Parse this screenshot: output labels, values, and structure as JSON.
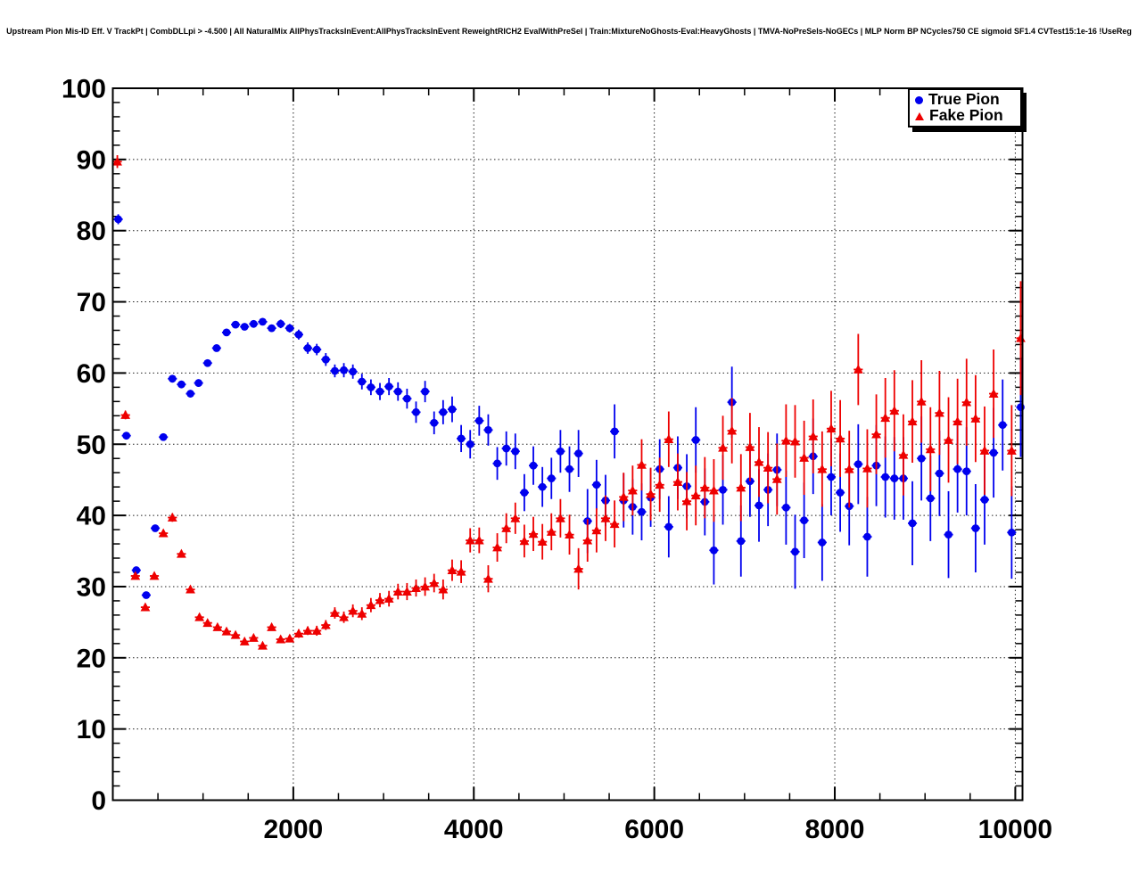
{
  "title": "Upstream Pion Mis-ID Eff. V TrackPt | CombDLLpi > -4.500 | All NaturalMix AllPhysTracksInEvent:AllPhysTracksInEvent ReweightRICH2 EvalWithPreSel | Train:MixtureNoGhosts-Eval:HeavyGhosts | TMVA-NoPreSels-NoGECs | MLP Norm BP NCycles750 CE sigmoid SF1.4 CVTest15:1e-16 !UseReg",
  "legend": {
    "items": [
      {
        "label": "True Pion",
        "marker": "circle",
        "color": "#0000ee"
      },
      {
        "label": "Fake Pion",
        "marker": "triangle",
        "color": "#ee0000"
      }
    ]
  },
  "colors": {
    "true_pion": "#0000ee",
    "fake_pion": "#ee0000",
    "frame": "#000000",
    "grid": "#222222",
    "background": "#ffffff"
  },
  "chart_data": {
    "type": "scatter",
    "title": "Upstream Pion Mis-ID Eff. V TrackPt",
    "xlabel": "",
    "ylabel": "",
    "xlim": [
      0,
      10080
    ],
    "ylim": [
      0,
      100
    ],
    "x_ticks": [
      2000,
      4000,
      6000,
      8000,
      10000
    ],
    "x_minor_step": 500,
    "y_ticks": [
      0,
      10,
      20,
      30,
      40,
      50,
      60,
      70,
      80,
      90,
      100
    ],
    "y_minor_step": 2,
    "grid": true,
    "grid_style": "dotted",
    "legend_position": "top-right",
    "x_error_halfwidth": 50,
    "series": [
      {
        "name": "True Pion",
        "marker": "circle",
        "color": "#0000ee",
        "points": [
          [
            60,
            81.6,
            0.7
          ],
          [
            150,
            51.2,
            0.5
          ],
          [
            260,
            32.3,
            0.5
          ],
          [
            370,
            28.8,
            0.5
          ],
          [
            470,
            38.2,
            0.5
          ],
          [
            560,
            51.0,
            0.5
          ],
          [
            660,
            59.2,
            0.5
          ],
          [
            760,
            58.4,
            0.5
          ],
          [
            860,
            57.1,
            0.5
          ],
          [
            950,
            58.6,
            0.5
          ],
          [
            1050,
            61.4,
            0.5
          ],
          [
            1150,
            63.5,
            0.5
          ],
          [
            1260,
            65.7,
            0.5
          ],
          [
            1360,
            66.8,
            0.5
          ],
          [
            1460,
            66.5,
            0.5
          ],
          [
            1560,
            66.9,
            0.5
          ],
          [
            1660,
            67.2,
            0.5
          ],
          [
            1760,
            66.3,
            0.5
          ],
          [
            1860,
            66.9,
            0.6
          ],
          [
            1960,
            66.3,
            0.6
          ],
          [
            2060,
            65.4,
            0.7
          ],
          [
            2160,
            63.5,
            0.8
          ],
          [
            2260,
            63.3,
            0.8
          ],
          [
            2360,
            61.9,
            0.9
          ],
          [
            2460,
            60.3,
            0.9
          ],
          [
            2560,
            60.4,
            1.0
          ],
          [
            2660,
            60.2,
            1.0
          ],
          [
            2760,
            58.8,
            1.1
          ],
          [
            2860,
            58.0,
            1.1
          ],
          [
            2960,
            57.4,
            1.2
          ],
          [
            3060,
            58.1,
            1.2
          ],
          [
            3160,
            57.4,
            1.3
          ],
          [
            3260,
            56.4,
            1.4
          ],
          [
            3360,
            54.5,
            1.5
          ],
          [
            3460,
            57.4,
            1.5
          ],
          [
            3560,
            53.0,
            1.6
          ],
          [
            3660,
            54.5,
            1.7
          ],
          [
            3760,
            54.9,
            1.8
          ],
          [
            3860,
            50.8,
            1.9
          ],
          [
            3960,
            50.0,
            2.0
          ],
          [
            4060,
            53.3,
            2.1
          ],
          [
            4160,
            52.0,
            2.2
          ],
          [
            4260,
            47.3,
            2.3
          ],
          [
            4360,
            49.4,
            2.4
          ],
          [
            4460,
            49.0,
            2.5
          ],
          [
            4560,
            43.2,
            2.6
          ],
          [
            4660,
            47.0,
            2.7
          ],
          [
            4760,
            44.0,
            2.8
          ],
          [
            4860,
            45.2,
            2.9
          ],
          [
            4960,
            49.0,
            3.0
          ],
          [
            5060,
            46.5,
            3.2
          ],
          [
            5160,
            48.7,
            3.3
          ],
          [
            5260,
            39.2,
            4.5
          ],
          [
            5360,
            44.3,
            3.5
          ],
          [
            5460,
            42.1,
            3.6
          ],
          [
            5560,
            51.8,
            3.8
          ],
          [
            5660,
            42.1,
            3.8
          ],
          [
            5760,
            41.2,
            3.9
          ],
          [
            5860,
            40.5,
            4.0
          ],
          [
            5960,
            42.5,
            4.1
          ],
          [
            6060,
            46.5,
            4.2
          ],
          [
            6160,
            38.4,
            4.3
          ],
          [
            6260,
            46.7,
            4.4
          ],
          [
            6360,
            44.1,
            4.5
          ],
          [
            6460,
            50.6,
            4.6
          ],
          [
            6560,
            41.9,
            4.7
          ],
          [
            6660,
            35.1,
            4.8
          ],
          [
            6760,
            43.6,
            4.9
          ],
          [
            6860,
            55.9,
            5.0
          ],
          [
            6960,
            36.4,
            5.0
          ],
          [
            7060,
            44.8,
            5.0
          ],
          [
            7160,
            41.4,
            5.1
          ],
          [
            7260,
            43.6,
            5.1
          ],
          [
            7360,
            46.4,
            5.1
          ],
          [
            7460,
            41.1,
            5.2
          ],
          [
            7560,
            34.9,
            5.2
          ],
          [
            7660,
            39.3,
            5.3
          ],
          [
            7760,
            48.3,
            5.3
          ],
          [
            7860,
            36.2,
            5.4
          ],
          [
            7960,
            45.4,
            5.4
          ],
          [
            8060,
            43.2,
            5.5
          ],
          [
            8160,
            41.3,
            5.5
          ],
          [
            8260,
            47.2,
            5.6
          ],
          [
            8360,
            37.0,
            5.6
          ],
          [
            8460,
            47.0,
            5.7
          ],
          [
            8560,
            45.4,
            5.7
          ],
          [
            8660,
            45.2,
            5.8
          ],
          [
            8760,
            45.2,
            5.8
          ],
          [
            8860,
            38.9,
            5.9
          ],
          [
            8960,
            48.0,
            5.9
          ],
          [
            9060,
            42.4,
            6.0
          ],
          [
            9160,
            45.9,
            6.0
          ],
          [
            9260,
            37.3,
            6.1
          ],
          [
            9360,
            46.5,
            6.1
          ],
          [
            9460,
            46.2,
            6.2
          ],
          [
            9560,
            38.2,
            6.2
          ],
          [
            9660,
            42.2,
            6.3
          ],
          [
            9760,
            48.8,
            6.3
          ],
          [
            9860,
            52.7,
            6.4
          ],
          [
            9960,
            37.6,
            6.5
          ],
          [
            10060,
            55.2,
            7.0
          ]
        ]
      },
      {
        "name": "Fake Pion",
        "marker": "triangle",
        "color": "#ee0000",
        "points": [
          [
            50,
            89.7,
            0.9
          ],
          [
            140,
            54.1,
            0.6
          ],
          [
            250,
            31.5,
            0.5
          ],
          [
            360,
            27.1,
            0.5
          ],
          [
            460,
            31.5,
            0.5
          ],
          [
            560,
            37.5,
            0.5
          ],
          [
            660,
            39.7,
            0.6
          ],
          [
            760,
            34.6,
            0.5
          ],
          [
            860,
            29.6,
            0.5
          ],
          [
            960,
            25.7,
            0.4
          ],
          [
            1050,
            24.9,
            0.4
          ],
          [
            1160,
            24.3,
            0.4
          ],
          [
            1260,
            23.7,
            0.4
          ],
          [
            1360,
            23.2,
            0.4
          ],
          [
            1460,
            22.3,
            0.4
          ],
          [
            1560,
            22.8,
            0.4
          ],
          [
            1660,
            21.7,
            0.4
          ],
          [
            1760,
            24.3,
            0.5
          ],
          [
            1860,
            22.6,
            0.5
          ],
          [
            1960,
            22.7,
            0.5
          ],
          [
            2060,
            23.4,
            0.6
          ],
          [
            2160,
            23.8,
            0.6
          ],
          [
            2260,
            23.8,
            0.7
          ],
          [
            2360,
            24.6,
            0.7
          ],
          [
            2460,
            26.3,
            0.8
          ],
          [
            2560,
            25.7,
            0.8
          ],
          [
            2660,
            26.6,
            0.9
          ],
          [
            2760,
            26.2,
            0.9
          ],
          [
            2860,
            27.4,
            1.0
          ],
          [
            2960,
            28.1,
            1.0
          ],
          [
            3060,
            28.3,
            1.1
          ],
          [
            3160,
            29.3,
            1.1
          ],
          [
            3260,
            29.3,
            1.2
          ],
          [
            3360,
            29.8,
            1.2
          ],
          [
            3460,
            30.0,
            1.3
          ],
          [
            3560,
            30.5,
            1.3
          ],
          [
            3660,
            29.6,
            1.4
          ],
          [
            3760,
            32.3,
            1.5
          ],
          [
            3860,
            32.1,
            1.6
          ],
          [
            3960,
            36.5,
            1.7
          ],
          [
            4060,
            36.5,
            1.8
          ],
          [
            4160,
            31.1,
            1.9
          ],
          [
            4260,
            35.5,
            2.0
          ],
          [
            4360,
            38.2,
            2.1
          ],
          [
            4460,
            39.6,
            2.2
          ],
          [
            4560,
            36.4,
            2.3
          ],
          [
            4660,
            37.4,
            2.4
          ],
          [
            4760,
            36.3,
            2.5
          ],
          [
            4860,
            37.7,
            2.6
          ],
          [
            4960,
            39.6,
            2.7
          ],
          [
            5060,
            37.3,
            2.8
          ],
          [
            5160,
            32.5,
            2.9
          ],
          [
            5260,
            36.5,
            3.0
          ],
          [
            5360,
            37.9,
            3.1
          ],
          [
            5460,
            39.6,
            3.2
          ],
          [
            5560,
            38.8,
            3.3
          ],
          [
            5660,
            42.6,
            3.4
          ],
          [
            5760,
            43.5,
            3.5
          ],
          [
            5860,
            47.1,
            3.6
          ],
          [
            5960,
            43.0,
            3.7
          ],
          [
            6060,
            44.3,
            3.8
          ],
          [
            6160,
            50.7,
            3.9
          ],
          [
            6260,
            44.7,
            4.0
          ],
          [
            6360,
            42.0,
            4.1
          ],
          [
            6460,
            42.8,
            4.2
          ],
          [
            6560,
            43.9,
            4.3
          ],
          [
            6660,
            43.5,
            4.4
          ],
          [
            6760,
            49.5,
            4.5
          ],
          [
            6860,
            51.9,
            4.6
          ],
          [
            6960,
            43.9,
            4.7
          ],
          [
            7060,
            49.6,
            4.8
          ],
          [
            7160,
            47.5,
            4.9
          ],
          [
            7260,
            46.7,
            5.0
          ],
          [
            7360,
            45.1,
            5.0
          ],
          [
            7460,
            50.5,
            5.1
          ],
          [
            7560,
            50.4,
            5.1
          ],
          [
            7660,
            48.1,
            5.2
          ],
          [
            7760,
            51.1,
            5.2
          ],
          [
            7860,
            46.5,
            5.3
          ],
          [
            7960,
            52.2,
            5.3
          ],
          [
            8060,
            50.8,
            5.4
          ],
          [
            8160,
            46.5,
            5.4
          ],
          [
            8260,
            60.5,
            5.0
          ],
          [
            8360,
            46.6,
            5.5
          ],
          [
            8460,
            51.4,
            5.6
          ],
          [
            8560,
            53.7,
            5.6
          ],
          [
            8660,
            54.7,
            5.7
          ],
          [
            8760,
            48.5,
            5.7
          ],
          [
            8860,
            53.2,
            5.8
          ],
          [
            8960,
            56.0,
            5.8
          ],
          [
            9060,
            49.3,
            5.9
          ],
          [
            9160,
            54.4,
            5.9
          ],
          [
            9260,
            50.6,
            6.0
          ],
          [
            9360,
            53.2,
            6.0
          ],
          [
            9460,
            55.9,
            6.1
          ],
          [
            9560,
            53.6,
            6.1
          ],
          [
            9660,
            49.1,
            6.2
          ],
          [
            9760,
            57.1,
            6.2
          ],
          [
            9960,
            49.1,
            6.4
          ],
          [
            10060,
            64.9,
            8.0
          ]
        ]
      }
    ]
  }
}
